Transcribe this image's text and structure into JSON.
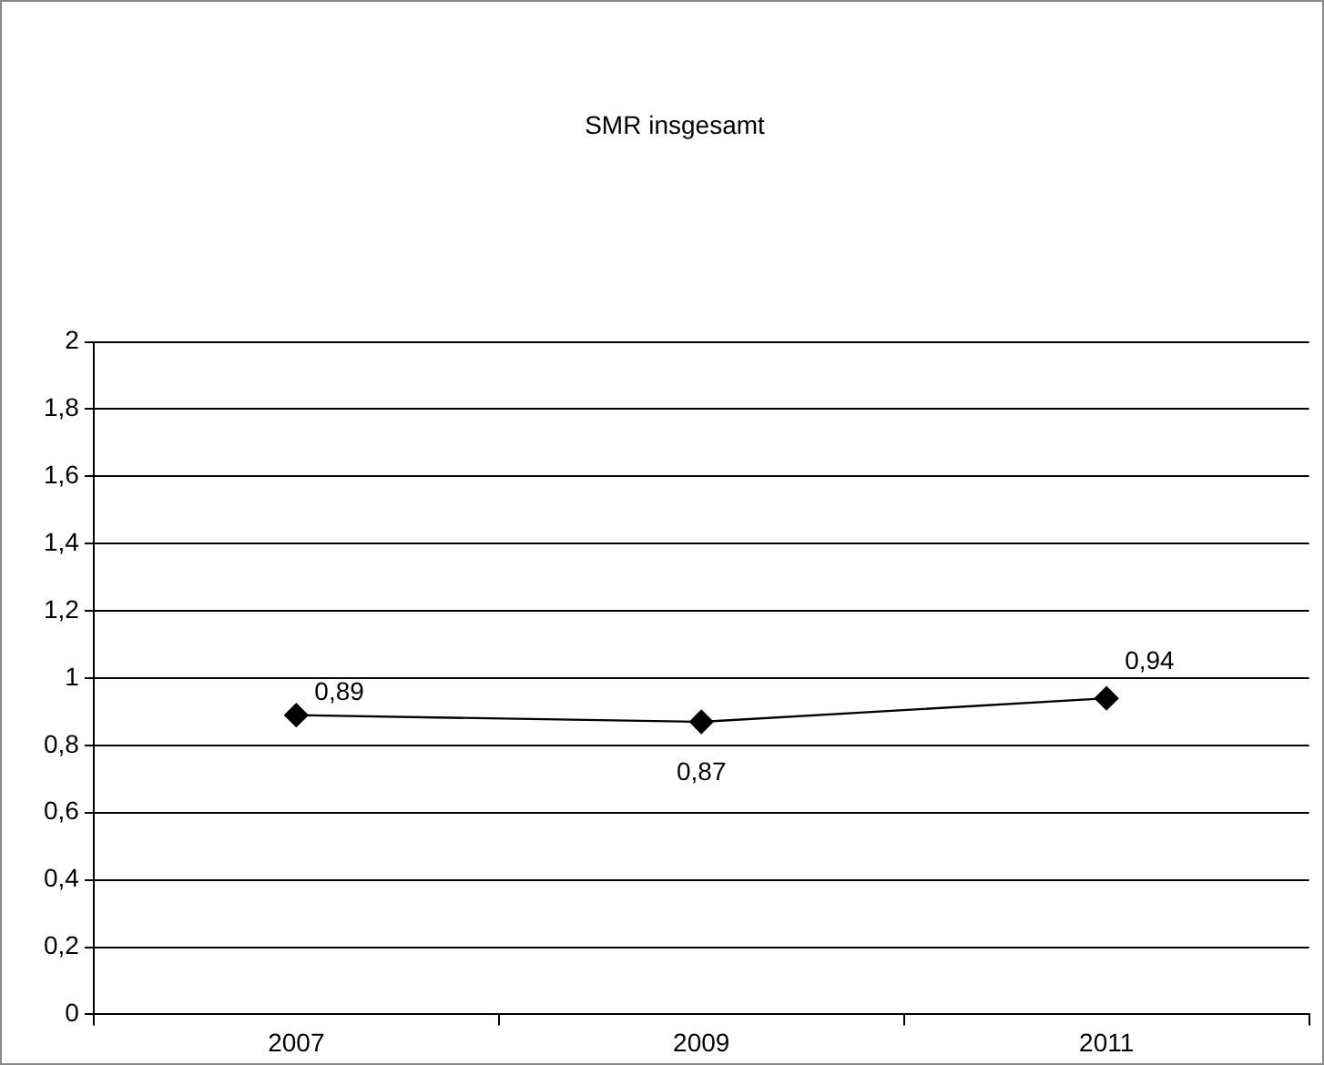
{
  "chart_data": {
    "type": "line",
    "title": "SMR insgesamt",
    "categories": [
      "2007",
      "2009",
      "2011"
    ],
    "series": [
      {
        "color": "#000000",
        "values": [
          0.89,
          0.87,
          0.94
        ],
        "value_labels": [
          "0,89",
          "0,87",
          "0,94"
        ]
      }
    ],
    "ylim": [
      0,
      2
    ],
    "yticks": [
      0,
      {
        "value": 0.2,
        "label": "0,2"
      },
      {
        "value": 0.4,
        "label": "0,4"
      },
      {
        "value": 0.6,
        "label": "0,6"
      },
      {
        "value": 0.8,
        "label": "0,8"
      },
      1,
      {
        "value": 1.2,
        "label": "1,2"
      },
      {
        "value": 1.4,
        "label": "1,4"
      },
      {
        "value": 1.6,
        "label": "1,6"
      },
      {
        "value": 1.8,
        "label": "1,8"
      },
      2
    ],
    "grid": "y",
    "legend": false,
    "marker": "diamond",
    "line_style": "solid"
  }
}
